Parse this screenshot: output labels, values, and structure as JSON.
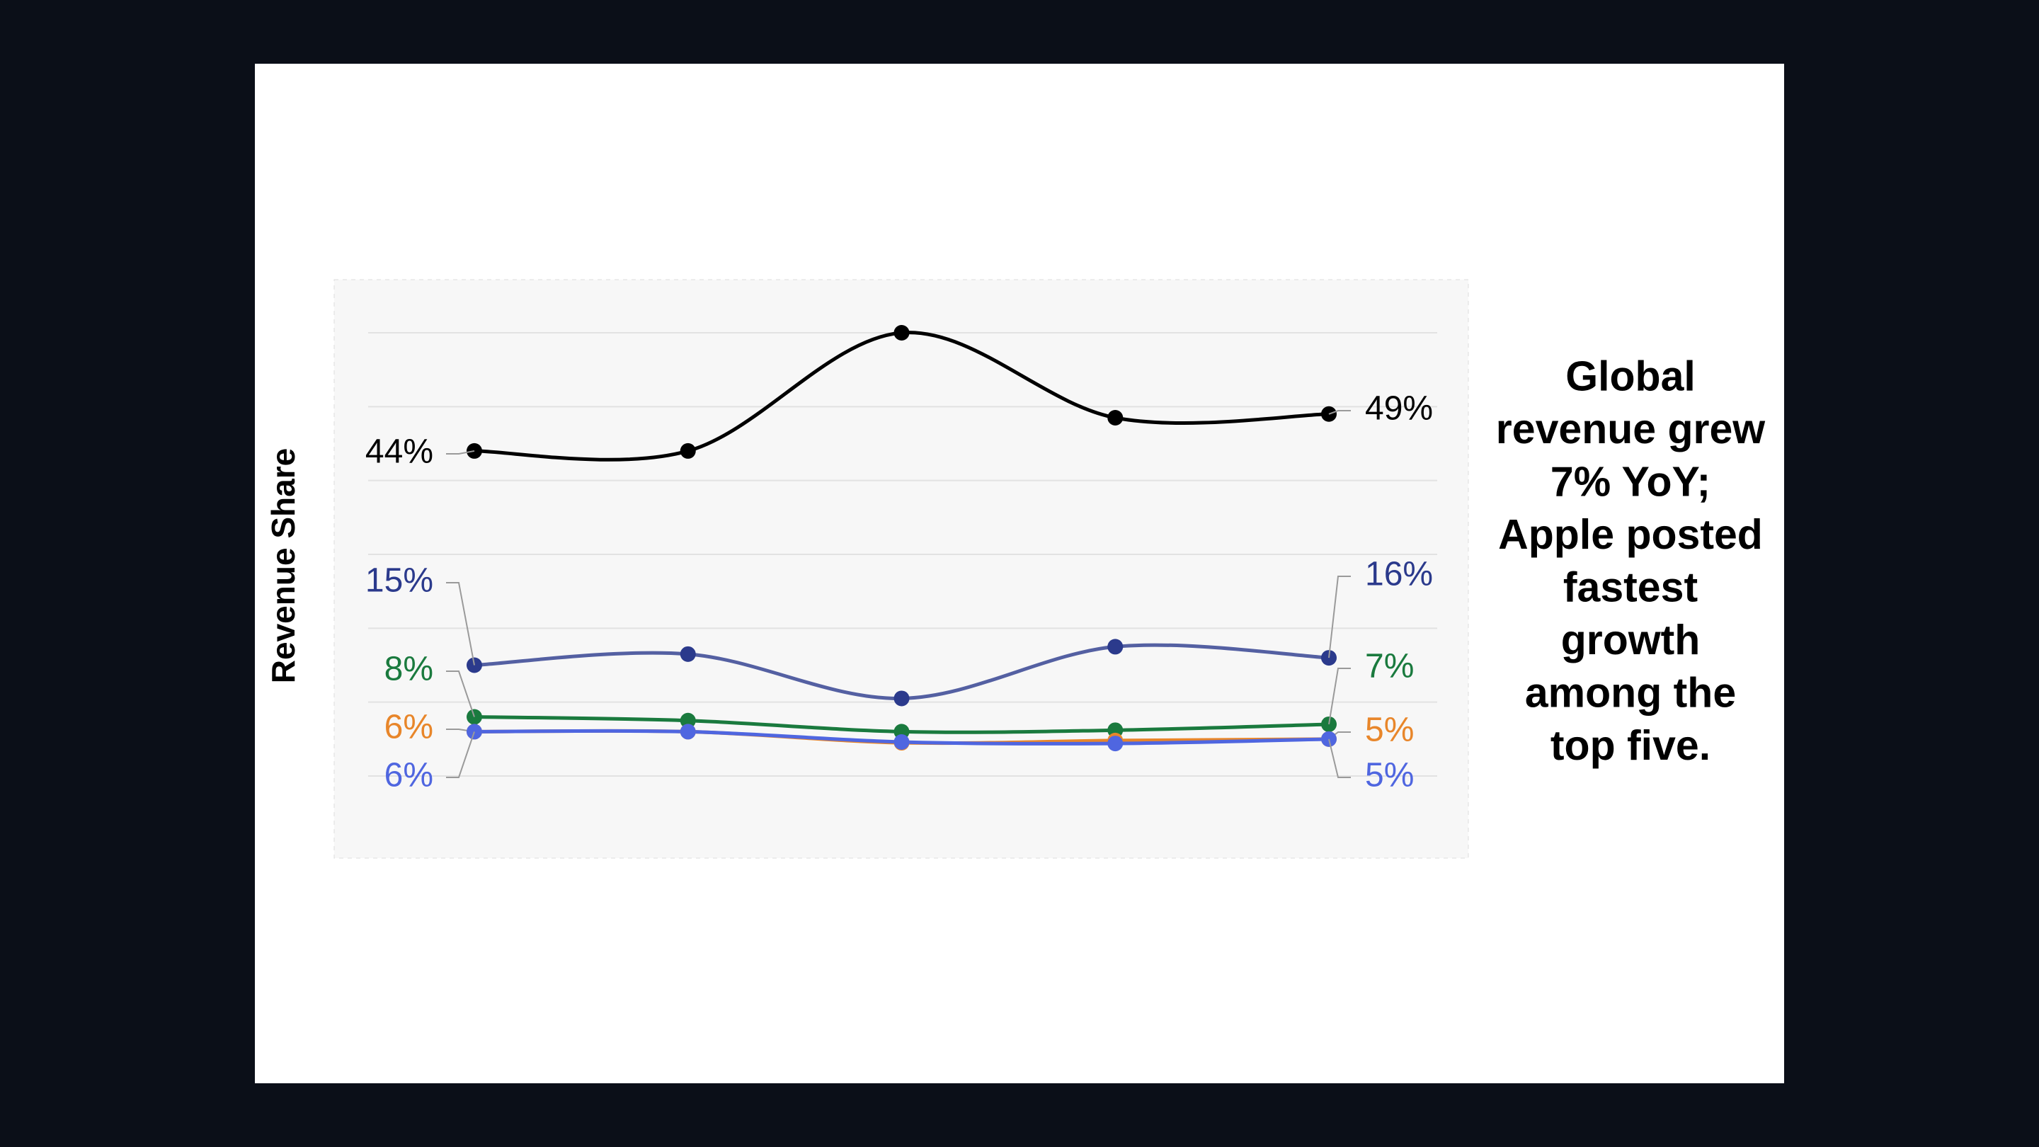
{
  "chart_data": {
    "type": "line",
    "y_label": "Revenue Share",
    "annotation": [
      "Global",
      "revenue grew",
      "7% YoY;",
      "Apple posted",
      "fastest",
      "growth",
      "among the",
      "top five."
    ],
    "categories": [
      null,
      null,
      null,
      null,
      null
    ],
    "ylim": [
      0,
      60
    ],
    "yticks": [
      0,
      10,
      20,
      30,
      40,
      50,
      60
    ],
    "grid": true,
    "series": [
      {
        "color": "#000000",
        "values": [
          44,
          44,
          60,
          48.5,
          49
        ],
        "value_labels": [
          "44%",
          null,
          null,
          null,
          "49%"
        ]
      },
      {
        "color": "#2b3a8c",
        "values": [
          15,
          16.5,
          10.5,
          17.5,
          16
        ],
        "value_labels": [
          "15%",
          null,
          null,
          null,
          "16%"
        ]
      },
      {
        "color": "#1a7a3e",
        "values": [
          8,
          7.5,
          6,
          6.2,
          7
        ],
        "value_labels": [
          "8%",
          null,
          null,
          null,
          "7%"
        ]
      },
      {
        "color": "#e8862a",
        "values": [
          6,
          6,
          4.5,
          4.8,
          5
        ],
        "value_labels": [
          "6%",
          null,
          null,
          null,
          "5%"
        ]
      },
      {
        "color": "#4f66e0",
        "values": [
          6,
          6,
          4.6,
          4.4,
          5
        ],
        "value_labels": [
          "6%",
          null,
          null,
          null,
          "5%"
        ]
      }
    ]
  }
}
